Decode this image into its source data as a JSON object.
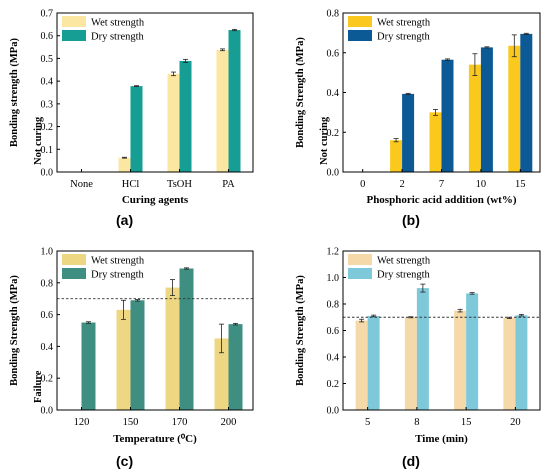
{
  "chart_data": [
    {
      "panel": "(a)",
      "type": "bar",
      "categories": [
        "None",
        "HCl",
        "TsOH",
        "PA"
      ],
      "series": [
        {
          "name": "Wet strength",
          "color": "#FCE7A2",
          "values": [
            null,
            0.063,
            0.432,
            0.538
          ],
          "errors": [
            null,
            0.002,
            0.008,
            0.004
          ]
        },
        {
          "name": "Dry strength",
          "color": "#169E95",
          "values": [
            null,
            0.378,
            0.489,
            0.625
          ],
          "errors": [
            null,
            0.002,
            0.007,
            0.003
          ]
        }
      ],
      "xlabel": "Curing agents",
      "ylabel": "Bonding strength (MPa)",
      "ylim": [
        0.0,
        0.7
      ],
      "yticks": [
        "0.0",
        "0.1",
        "0.2",
        "0.3",
        "0.4",
        "0.5",
        "0.6",
        "0.7"
      ],
      "annotations": [
        "Not curing"
      ],
      "legend": "top-left",
      "reference_line": null
    },
    {
      "panel": "(b)",
      "type": "bar",
      "categories": [
        "0",
        "2",
        "7",
        "10",
        "15"
      ],
      "series": [
        {
          "name": "Wet strength",
          "color": "#FBC91E",
          "values": [
            null,
            0.16,
            0.3,
            0.54,
            0.635
          ],
          "errors": [
            null,
            0.008,
            0.015,
            0.055,
            0.055
          ]
        },
        {
          "name": "Dry strength",
          "color": "#0B5A96",
          "values": [
            null,
            0.393,
            0.565,
            0.627,
            0.695
          ],
          "errors": [
            null,
            0.003,
            0.004,
            0.003,
            0.003
          ]
        }
      ],
      "xlabel": "Phosphoric acid addition (wt%)",
      "ylabel": "Bonding Strength (MPa)",
      "ylim": [
        0.0,
        0.8
      ],
      "yticks": [
        "0.0",
        "0.2",
        "0.4",
        "0.6",
        "0.8"
      ],
      "annotations": [
        "Not curing"
      ],
      "legend": "top-left",
      "reference_line": null
    },
    {
      "panel": "(c)",
      "type": "bar",
      "categories": [
        "120",
        "150",
        "170",
        "200"
      ],
      "series": [
        {
          "name": "Wet strength",
          "color": "#EDD783",
          "values": [
            null,
            0.63,
            0.77,
            0.45
          ],
          "errors": [
            null,
            0.06,
            0.05,
            0.09
          ]
        },
        {
          "name": "Dry strength",
          "color": "#3F8E82",
          "values": [
            0.55,
            0.69,
            0.89,
            0.54
          ],
          "errors": [
            0.005,
            0.005,
            0.004,
            0.005
          ]
        }
      ],
      "xlabel": "Temperature (⁰C)",
      "ylabel": "Bonding Strength (MPa)",
      "ylim": [
        0.0,
        1.0
      ],
      "yticks": [
        "0.0",
        "0.2",
        "0.4",
        "0.6",
        "0.8",
        "1.0"
      ],
      "annotations": [
        "Failure"
      ],
      "legend": "top-left",
      "reference_line": 0.7
    },
    {
      "panel": "(d)",
      "type": "bar",
      "categories": [
        "5",
        "8",
        "15",
        "20"
      ],
      "series": [
        {
          "name": "Wet strength",
          "color": "#F5D9A8",
          "values": [
            0.675,
            0.7,
            0.75,
            0.695
          ],
          "errors": [
            0.01,
            0.004,
            0.01,
            0.005
          ]
        },
        {
          "name": "Dry strength",
          "color": "#7EC9D9",
          "values": [
            0.71,
            0.92,
            0.88,
            0.715
          ],
          "errors": [
            0.006,
            0.03,
            0.006,
            0.006
          ]
        }
      ],
      "xlabel": "Time  (min)",
      "ylabel": "Bonding Strength (MPa)",
      "ylim": [
        0.0,
        1.2
      ],
      "yticks": [
        "0.0",
        "0.2",
        "0.4",
        "0.6",
        "0.8",
        "1.0",
        "1.2"
      ],
      "annotations": [],
      "legend": "top-left",
      "reference_line": 0.7
    }
  ]
}
